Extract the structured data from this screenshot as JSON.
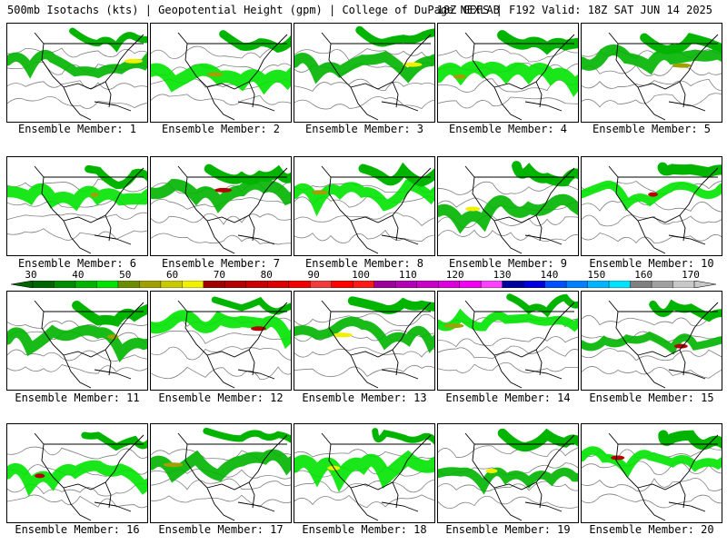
{
  "header": {
    "left": "500mb Isotachs (kts) | Geopotential Height (gpm) | College of DuPage NEXLAB",
    "right": "18Z GEFS | F192 Valid: 18Z SAT JUN 14 2025"
  },
  "colorbar": {
    "ticks": [
      "30",
      "40",
      "50",
      "60",
      "70",
      "80",
      "90",
      "100",
      "110",
      "120",
      "130",
      "140",
      "150",
      "160",
      "170"
    ],
    "colors": [
      "#006400",
      "#008c00",
      "#00b400",
      "#00e400",
      "#6b8e00",
      "#a0a000",
      "#c8c800",
      "#f0f000",
      "#a00000",
      "#b40000",
      "#c80000",
      "#dc0000",
      "#f00000",
      "#f03c3c",
      "#ff0000",
      "#ff1a1a",
      "#9b009b",
      "#b400b4",
      "#c800c8",
      "#dc00dc",
      "#f000f0",
      "#ff40ff",
      "#0000a0",
      "#0000dc",
      "#0050ff",
      "#0080ff",
      "#00b4ff",
      "#00e0ff",
      "#808080",
      "#a0a0a0",
      "#c8c8c8"
    ]
  },
  "panels": [
    {
      "label": "Ensemble Member: 1"
    },
    {
      "label": "Ensemble Member: 2"
    },
    {
      "label": "Ensemble Member: 3"
    },
    {
      "label": "Ensemble Member: 4"
    },
    {
      "label": "Ensemble Member: 5"
    },
    {
      "label": "Ensemble Member: 6"
    },
    {
      "label": "Ensemble Member: 7"
    },
    {
      "label": "Ensemble Member: 8"
    },
    {
      "label": "Ensemble Member: 9"
    },
    {
      "label": "Ensemble Member: 10"
    },
    {
      "label": "Ensemble Member: 11"
    },
    {
      "label": "Ensemble Member: 12"
    },
    {
      "label": "Ensemble Member: 13"
    },
    {
      "label": "Ensemble Member: 14"
    },
    {
      "label": "Ensemble Member: 15"
    },
    {
      "label": "Ensemble Member: 16"
    },
    {
      "label": "Ensemble Member: 17"
    },
    {
      "label": "Ensemble Member: 18"
    },
    {
      "label": "Ensemble Member: 19"
    },
    {
      "label": "Ensemble Member: 20"
    }
  ]
}
